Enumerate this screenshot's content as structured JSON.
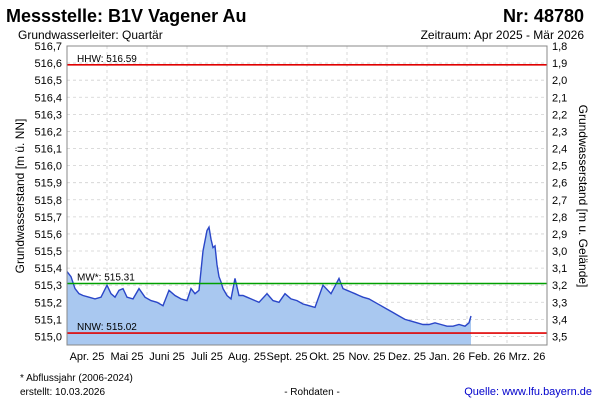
{
  "header": {
    "title": "Messstelle: B1V Vagener Au",
    "number": "Nr: 48780",
    "aquifer": "Grundwasserleiter: Quartär",
    "period": "Zeitraum: Apr 2025 - Mär 2026"
  },
  "footer": {
    "note": "* Abflussjahr (2006-2024)",
    "created": "erstellt:  10.03.2026",
    "raw": "- Rohdaten -",
    "source": "Quelle: www.lfu.bayern.de"
  },
  "colors": {
    "fill": "#a9c8f0",
    "line": "#2a46c8",
    "hhw": "#e00000",
    "mw": "#00a000",
    "nnw": "#e00000",
    "grid": "#d0d0d0"
  },
  "chart_data": {
    "type": "area",
    "ylabel_left": "Grundwasserstand [m ü. NN]",
    "ylabel_right": "Grundwasserstand [m u. Gelände]",
    "ylim": [
      514.95,
      516.7
    ],
    "left_ticks": [
      "516,7",
      "516,6",
      "516,5",
      "516,4",
      "516,3",
      "516,2",
      "516,1",
      "516,0",
      "515,9",
      "515,8",
      "515,7",
      "515,6",
      "515,5",
      "515,4",
      "515,3",
      "515,2",
      "515,1",
      "515,0"
    ],
    "right_ticks": [
      "1,8",
      "1,9",
      "2,0",
      "2,1",
      "2,2",
      "2,3",
      "2,4",
      "2,5",
      "2,6",
      "2,7",
      "2,8",
      "2,9",
      "3,0",
      "3,1",
      "3,2",
      "3,3",
      "3,4",
      "3,5"
    ],
    "x_ticks": [
      "Apr. 25",
      "Mai 25",
      "Juni 25",
      "Juli 25",
      "Aug. 25",
      "Sept. 25",
      "Okt. 25",
      "Nov. 25",
      "Dez. 25",
      "Jan. 26",
      "Feb. 26",
      "Mrz. 26"
    ],
    "reference_lines": [
      {
        "label": "HHW: 516.59",
        "value": 516.59
      },
      {
        "label": "MW*: 515.31",
        "value": 515.31
      },
      {
        "label": "NNW: 515.02",
        "value": 515.02
      }
    ],
    "series": [
      {
        "x": [
          0,
          0.1,
          0.2,
          0.3,
          0.4,
          0.55,
          0.7,
          0.85,
          1.0,
          1.1,
          1.2,
          1.3,
          1.4,
          1.5,
          1.65,
          1.8,
          1.95,
          2.1,
          2.25,
          2.4,
          2.55,
          2.7,
          2.85,
          3.0,
          3.1,
          3.2,
          3.3,
          3.4,
          3.5,
          3.55,
          3.6,
          3.65,
          3.7,
          3.75,
          3.8,
          3.85,
          3.9,
          4.0,
          4.1,
          4.2,
          4.3,
          4.4,
          4.5,
          4.6,
          4.7,
          4.8,
          5.0,
          5.15,
          5.3,
          5.45,
          5.6,
          5.75,
          5.9,
          6.05,
          6.2,
          6.4,
          6.6,
          6.8,
          6.9,
          7.0,
          7.1,
          7.2,
          7.3,
          7.4,
          7.55,
          7.7,
          7.85,
          8.0,
          8.15,
          8.3,
          8.45,
          8.6,
          8.75,
          8.9,
          9.05,
          9.2,
          9.35,
          9.5,
          9.65,
          9.8,
          9.95,
          10.05,
          10.1
        ],
        "y": [
          515.38,
          515.35,
          515.28,
          515.25,
          515.24,
          515.23,
          515.22,
          515.23,
          515.3,
          515.25,
          515.23,
          515.27,
          515.28,
          515.23,
          515.22,
          515.28,
          515.23,
          515.21,
          515.2,
          515.18,
          515.27,
          515.24,
          515.22,
          515.21,
          515.28,
          515.25,
          515.27,
          515.5,
          515.62,
          515.64,
          515.57,
          515.52,
          515.53,
          515.42,
          515.35,
          515.32,
          515.28,
          515.24,
          515.22,
          515.34,
          515.24,
          515.24,
          515.23,
          515.22,
          515.21,
          515.2,
          515.25,
          515.21,
          515.2,
          515.25,
          515.22,
          515.21,
          515.19,
          515.18,
          515.17,
          515.3,
          515.25,
          515.34,
          515.28,
          515.27,
          515.26,
          515.25,
          515.24,
          515.23,
          515.22,
          515.2,
          515.18,
          515.16,
          515.14,
          515.12,
          515.1,
          515.09,
          515.08,
          515.07,
          515.07,
          515.08,
          515.07,
          515.06,
          515.06,
          515.07,
          515.06,
          515.08,
          515.12
        ]
      }
    ]
  }
}
